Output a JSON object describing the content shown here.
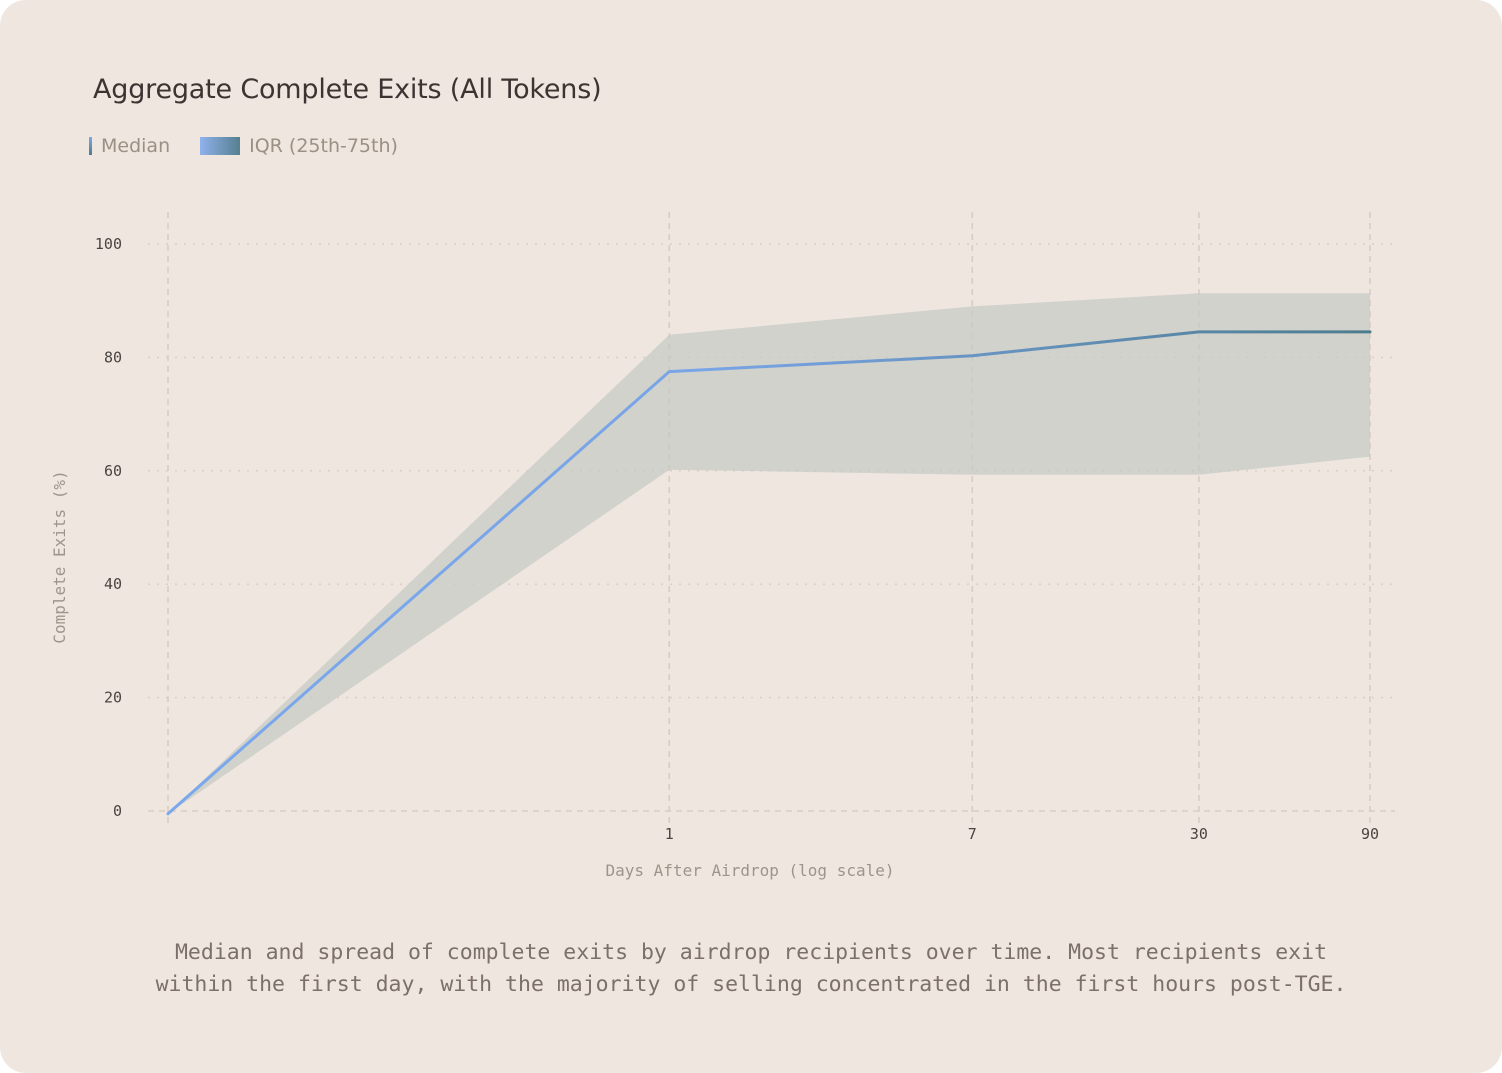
{
  "chart_data": {
    "type": "line",
    "title": "Aggregate Complete Exits (All Tokens)",
    "xlabel": "Days After Airdrop (log scale)",
    "ylabel": "Complete Exits (%)",
    "x_scale": "log",
    "x_tick_labels": [
      "1",
      "7",
      "30",
      "90"
    ],
    "y_ticks": [
      0,
      20,
      40,
      60,
      80,
      100
    ],
    "ylim": [
      0,
      100
    ],
    "grid": true,
    "legend_position": "top-left",
    "series": [
      {
        "name": "Median",
        "x": [
          0.04,
          1,
          7,
          30,
          90
        ],
        "values": [
          -0.5,
          77.5,
          80.3,
          84.5,
          84.5
        ]
      },
      {
        "name": "IQR (25th-75th)",
        "x": [
          0.04,
          1,
          7,
          30,
          90
        ],
        "lower": [
          -0.5,
          60.2,
          59.3,
          59.3,
          62.5
        ],
        "upper": [
          -0.5,
          84.0,
          89.0,
          91.3,
          91.3
        ]
      }
    ],
    "colors": {
      "median_start": "#7aa7ee",
      "median_end": "#4e7c8e",
      "band": "#c4cbc4",
      "grid": "#d9cdc3",
      "background": "#efe6df"
    }
  },
  "caption": {
    "line1": "Median and spread of complete exits by airdrop recipients over time. Most recipients exit",
    "line2": "within the first day, with the majority of selling concentrated in the first hours post-TGE."
  }
}
